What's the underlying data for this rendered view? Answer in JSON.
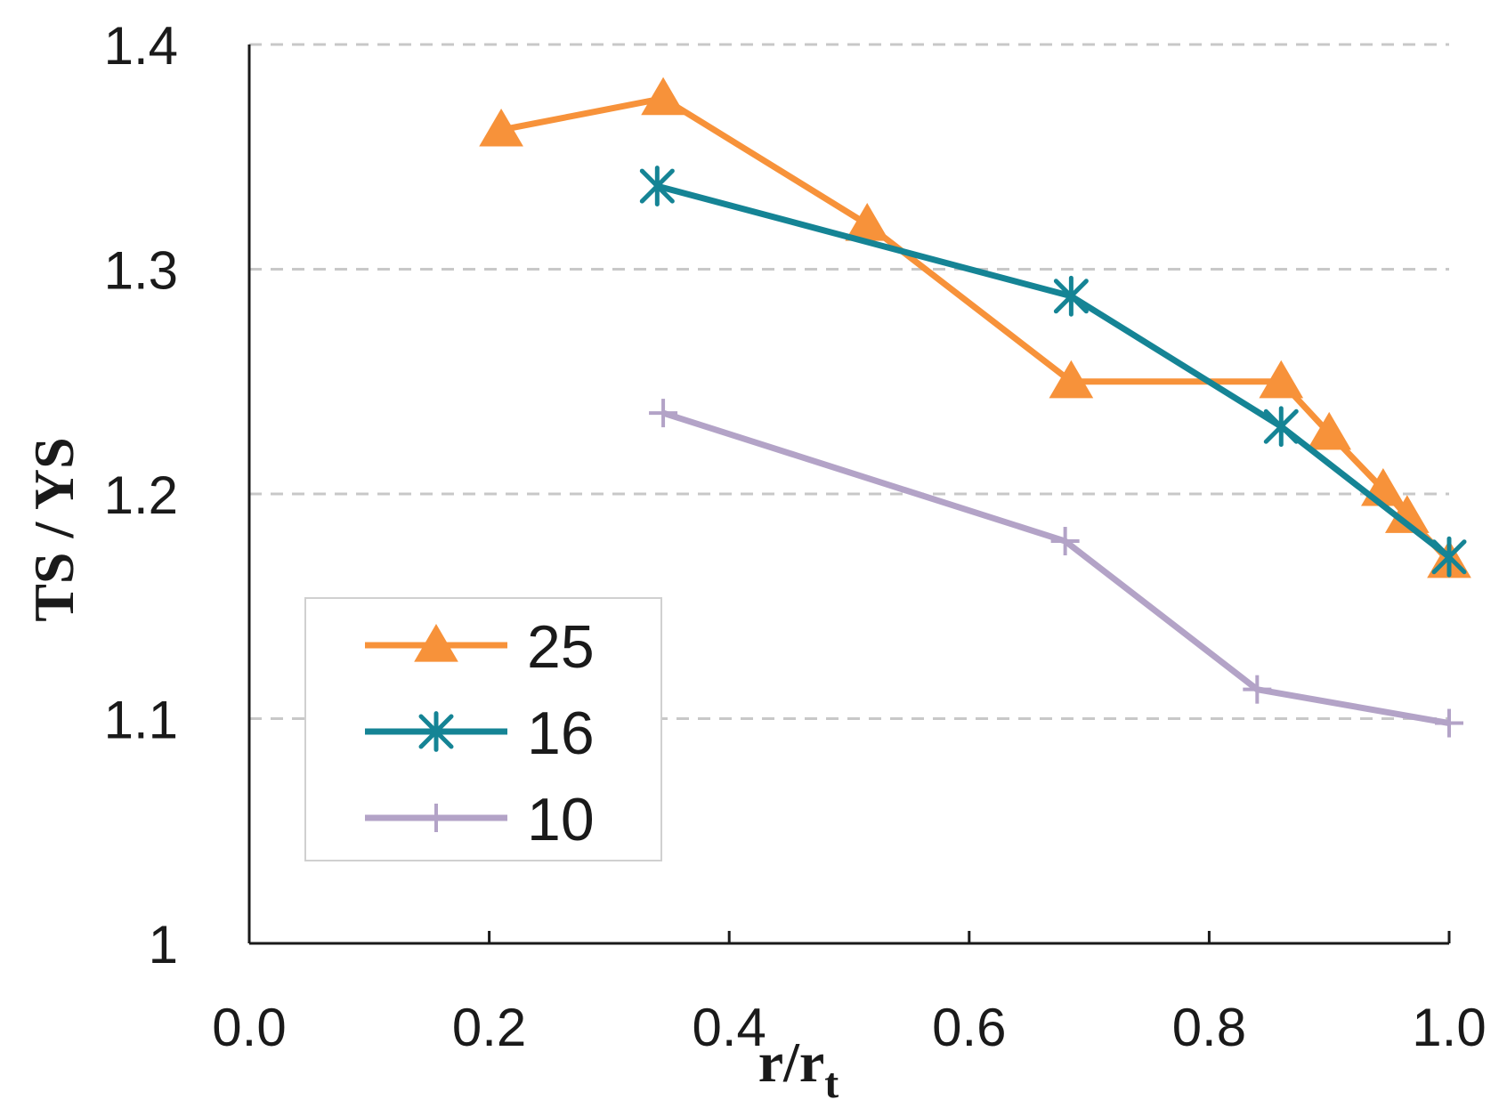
{
  "chart_data": {
    "type": "line",
    "title": "",
    "xlabel": "r/rt",
    "xlabel_main": "r/r",
    "xlabel_sub": "t",
    "ylabel": "TS / YS",
    "xlim": [
      0.0,
      1.0
    ],
    "ylim": [
      1.0,
      1.4
    ],
    "x_ticks": [
      0.0,
      0.2,
      0.4,
      0.6,
      0.8,
      1.0
    ],
    "x_tick_labels": [
      "0.0",
      "0.2",
      "0.4",
      "0.6",
      "0.8",
      "1.0"
    ],
    "y_ticks": [
      1.0,
      1.1,
      1.2,
      1.3,
      1.4
    ],
    "y_tick_labels": [
      "1",
      "1.1",
      "1.2",
      "1.3",
      "1.4"
    ],
    "grid": "horizontal dashed",
    "legend_position": "bottom-left",
    "series": [
      {
        "name": "25",
        "color": "#F7923A",
        "marker": "triangle",
        "x": [
          0.21,
          0.345,
          0.515,
          0.685,
          0.86,
          0.9,
          0.945,
          0.965,
          1.0
        ],
        "y": [
          1.362,
          1.376,
          1.32,
          1.25,
          1.25,
          1.227,
          1.202,
          1.19,
          1.17
        ]
      },
      {
        "name": "16",
        "color": "#158495",
        "marker": "asterisk",
        "x": [
          0.34,
          0.685,
          0.86,
          1.0
        ],
        "y": [
          1.337,
          1.288,
          1.23,
          1.172
        ]
      },
      {
        "name": "10",
        "color": "#B3A3C7",
        "marker": "plus",
        "x": [
          0.345,
          0.68,
          0.84,
          1.0
        ],
        "y": [
          1.236,
          1.179,
          1.113,
          1.098
        ]
      }
    ]
  }
}
